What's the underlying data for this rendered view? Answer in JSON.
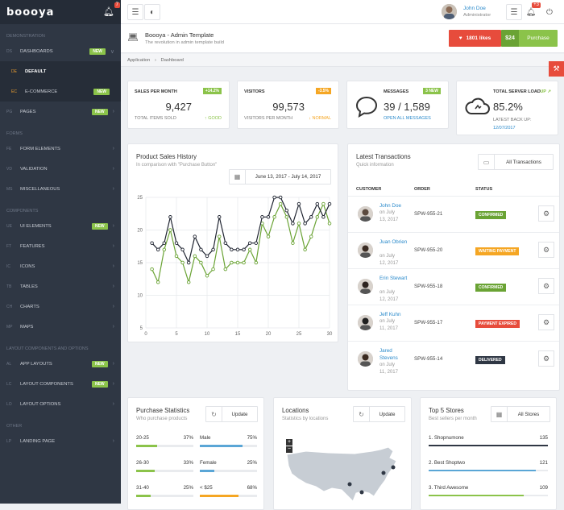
{
  "app": {
    "logo": "boooya",
    "notif_count": "7"
  },
  "sidebar": {
    "sections": [
      {
        "title": "Demonstration",
        "items": [
          {
            "abbr": "Ds",
            "label": "Dashboards",
            "badge": "NEW",
            "open": true,
            "children": [
              {
                "abbr": "De",
                "label": "Default",
                "active": true
              },
              {
                "abbr": "Ec",
                "label": "E-commerce",
                "badge": "NEW"
              }
            ]
          },
          {
            "abbr": "Pg",
            "label": "Pages",
            "badge": "NEW"
          }
        ]
      },
      {
        "title": "Forms",
        "items": [
          {
            "abbr": "Fe",
            "label": "Form Elements"
          },
          {
            "abbr": "Vd",
            "label": "Validation"
          },
          {
            "abbr": "Ms",
            "label": "Miscellaneous"
          }
        ]
      },
      {
        "title": "Components",
        "items": [
          {
            "abbr": "Ue",
            "label": "UI Elements",
            "badge": "NEW"
          },
          {
            "abbr": "Ft",
            "label": "Features"
          },
          {
            "abbr": "Ic",
            "label": "Icons"
          },
          {
            "abbr": "Tb",
            "label": "Tables"
          },
          {
            "abbr": "Ch",
            "label": "Charts"
          },
          {
            "abbr": "Mp",
            "label": "Maps"
          }
        ]
      },
      {
        "title": "Layout components and options",
        "items": [
          {
            "abbr": "Al",
            "label": "App Layouts",
            "badge": "NEW"
          },
          {
            "abbr": "Lc",
            "label": "Layout Components",
            "badge": "NEW"
          },
          {
            "abbr": "Lo",
            "label": "Layout Options"
          }
        ]
      },
      {
        "title": "Other",
        "items": [
          {
            "abbr": "Lp",
            "label": "Landing Page"
          }
        ]
      }
    ]
  },
  "topbar": {
    "user_name": "John Doe",
    "user_role": "Administrator",
    "notif_count": "+3"
  },
  "header": {
    "title": "Boooya - Admin Template",
    "subtitle": "The revolution in admin template build",
    "likes": "1801 likes",
    "price": "$24",
    "purchase": "Purchase"
  },
  "breadcrumb": {
    "items": [
      "Application",
      "Dashboard"
    ]
  },
  "stats": [
    {
      "title": "Sales per month",
      "badge": "+14.2%",
      "badge_color": "#8bc34a",
      "value": "9,427",
      "foot_left": "Total items sold",
      "foot_right": "Good",
      "foot_color": "#8bc34a",
      "foot_icon": "↑"
    },
    {
      "title": "Visitors",
      "badge": "-3.5%",
      "badge_color": "#f5a623",
      "value": "99,573",
      "foot_left": "Visitors per month",
      "foot_right": "Normal",
      "foot_color": "#f5a623",
      "foot_icon": "↓"
    },
    {
      "title": "Messages",
      "badge": "3 new",
      "badge_color": "#8bc34a",
      "value": "39 / 1,589",
      "link": "Open all messages"
    },
    {
      "title": "Total server load",
      "status": "Up",
      "value": "85.2%",
      "foot_label": "Latest back up:",
      "foot_date": "12/07/2017"
    }
  ],
  "sales_history": {
    "title": "Product Sales History",
    "subtitle": "In comparison with \"Purchase Button\"",
    "date_range": "June 13, 2017 - July 14, 2017"
  },
  "chart_data": {
    "type": "line",
    "x": [
      1,
      2,
      3,
      4,
      5,
      6,
      7,
      8,
      9,
      10,
      11,
      12,
      13,
      14,
      15,
      16,
      17,
      18,
      19,
      20,
      21,
      22,
      23,
      24,
      25,
      26,
      27,
      28,
      29,
      30
    ],
    "series": [
      {
        "values": [
          14,
          12,
          17,
          20,
          16,
          15,
          12,
          16,
          15,
          13,
          14,
          19,
          14,
          15,
          15,
          15,
          17,
          15,
          21,
          19,
          22,
          24,
          22,
          18,
          21,
          17,
          19,
          22,
          24,
          21
        ],
        "color": "#6aa334"
      },
      {
        "values": [
          18,
          17,
          18,
          22,
          18,
          17,
          15,
          19,
          17,
          16,
          17,
          22,
          18,
          17,
          17,
          17,
          18,
          18,
          22,
          22,
          25,
          25,
          23,
          21,
          24,
          21,
          22,
          24,
          22,
          24
        ],
        "color": "#1e2330"
      }
    ],
    "xticks": [
      0,
      5,
      10,
      15,
      20,
      25,
      30
    ],
    "yticks": [
      5,
      10,
      15,
      20,
      25
    ],
    "xlim": [
      0,
      30
    ],
    "ylim": [
      5,
      25
    ],
    "grid": true
  },
  "transactions": {
    "title": "Latest Transactions",
    "subtitle": "Quick information",
    "all_btn": "All Transactions",
    "headers": [
      "Customer",
      "Order",
      "Status"
    ],
    "rows": [
      {
        "name": "John Doe",
        "date_prefix": "on July",
        "date": "13, 2017",
        "order": "SPW-955-21",
        "status": "Confirmed",
        "color": "#6aa334"
      },
      {
        "name": "Juan Obrien",
        "date_prefix": "on July",
        "date": "12, 2017",
        "order": "SPW-955-20",
        "status": "Waiting Payment",
        "color": "#f5a623"
      },
      {
        "name": "Erin Stewart",
        "date_prefix": "on July",
        "date": "12, 2017",
        "order": "SPW-955-18",
        "status": "Confirmed",
        "color": "#6aa334"
      },
      {
        "name": "Jeff Kuhn",
        "date_prefix": "on July",
        "date": "11, 2017",
        "order": "SPW-955-17",
        "status": "Payment Expired",
        "color": "#e74c3c"
      },
      {
        "name": "Jared Stevens",
        "date_prefix": "on July",
        "date": "11, 2017",
        "order": "SPW-955-14",
        "status": "Delivered",
        "color": "#2f3744"
      }
    ]
  },
  "purchase_stats": {
    "title": "Purchase Statistics",
    "subtitle": "Who purchase products",
    "update": "Update",
    "rows": [
      {
        "label": "20-25",
        "value": "37%",
        "pct": 0.37,
        "color": "#8bc34a"
      },
      {
        "label": "Male",
        "value": "75%",
        "pct": 0.75,
        "color": "#5aa6d6"
      },
      {
        "label": "26-30",
        "value": "33%",
        "pct": 0.33,
        "color": "#8bc34a"
      },
      {
        "label": "Female",
        "value": "25%",
        "pct": 0.25,
        "color": "#5aa6d6"
      },
      {
        "label": "31-40",
        "value": "25%",
        "pct": 0.25,
        "color": "#8bc34a"
      },
      {
        "label": "< $25",
        "value": "68%",
        "pct": 0.68,
        "color": "#f5a623"
      }
    ]
  },
  "locations": {
    "title": "Locations",
    "subtitle": "Statistics by locations",
    "update": "Update"
  },
  "stores": {
    "title": "Top 5 Stores",
    "subtitle": "Best sellers per month",
    "all_btn": "All Stores",
    "rows": [
      {
        "label": "1. Shopnumone",
        "value": "135",
        "pct": 1.0,
        "color": "#2f3744"
      },
      {
        "label": "2. Best Shoptwo",
        "value": "121",
        "pct": 0.9,
        "color": "#5aa6d6"
      },
      {
        "label": "3. Third Awesome",
        "value": "109",
        "pct": 0.8,
        "color": "#8bc34a"
      }
    ]
  }
}
